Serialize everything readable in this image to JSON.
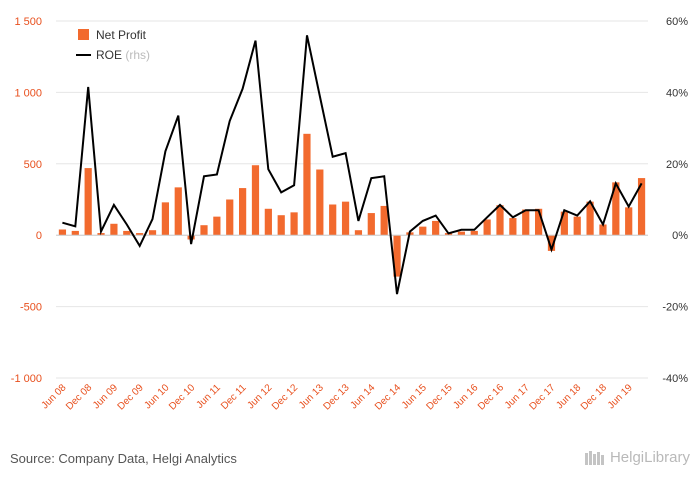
{
  "legend": {
    "net_profit": "Net Profit",
    "roe": "ROE",
    "roe_suffix": "(rhs)"
  },
  "source": "Source: Company Data, Helgi Analytics",
  "logo_text": "HelgiLibrary",
  "colors": {
    "bar": "#f26a2e",
    "line": "#000000",
    "left_axis_text": "#e8501e",
    "grid": "#e6e6e6"
  },
  "chart_data": {
    "type": "bar",
    "left_axis": {
      "ylim": [
        -1000,
        1500
      ],
      "ticks": [
        -1000,
        -500,
        0,
        500,
        1000,
        1500
      ],
      "tick_labels": [
        "-1 000",
        "-500",
        "0",
        "500",
        "1 000",
        "1 500"
      ]
    },
    "right_axis": {
      "ylim": [
        -40,
        60
      ],
      "ticks": [
        -40,
        -20,
        0,
        20,
        40,
        60
      ],
      "tick_labels": [
        "-40%",
        "-20%",
        "0%",
        "20%",
        "40%",
        "60%"
      ]
    },
    "x_tick_labels": [
      "Jun 08",
      "Dec 08",
      "Jun 09",
      "Dec 09",
      "Jun 10",
      "Dec 10",
      "Jun 11",
      "Dec 11",
      "Jun 12",
      "Dec 12",
      "Jun 13",
      "Dec 13",
      "Jun 14",
      "Dec 14",
      "Jun 15",
      "Dec 15",
      "Jun 16",
      "Dec 16",
      "Jun 17",
      "Dec 17",
      "Jun 18",
      "Dec 18",
      "Jun 19"
    ],
    "periods": [
      "Q2 08",
      "Q3 08",
      "Q4 08",
      "Q1 09",
      "Q2 09",
      "Q3 09",
      "Q4 09",
      "Q1 10",
      "Q2 10",
      "Q3 10",
      "Q4 10",
      "Q1 11",
      "Q2 11",
      "Q3 11",
      "Q4 11",
      "Q1 12",
      "Q2 12",
      "Q3 12",
      "Q4 12",
      "Q1 13",
      "Q2 13",
      "Q3 13",
      "Q4 13",
      "Q1 14",
      "Q2 14",
      "Q3 14",
      "Q4 14",
      "Q1 15",
      "Q2 15",
      "Q3 15",
      "Q4 15",
      "Q1 16",
      "Q2 16",
      "Q3 16",
      "Q4 16",
      "Q1 17",
      "Q2 17",
      "Q3 17",
      "Q4 17",
      "Q1 18",
      "Q2 18",
      "Q3 18",
      "Q4 18",
      "Q1 19",
      "Q2 19",
      "Q3 19"
    ],
    "series": [
      {
        "name": "Net Profit",
        "axis": "left",
        "type": "bar",
        "values": [
          40,
          30,
          470,
          15,
          80,
          30,
          15,
          35,
          230,
          335,
          -30,
          70,
          130,
          250,
          330,
          490,
          185,
          140,
          160,
          710,
          460,
          215,
          235,
          35,
          155,
          205,
          -290,
          20,
          60,
          100,
          15,
          25,
          30,
          110,
          210,
          120,
          180,
          185,
          -110,
          165,
          130,
          235,
          75,
          370,
          195,
          400
        ]
      },
      {
        "name": "ROE",
        "axis": "right",
        "type": "line",
        "values": [
          3.5,
          2.5,
          41.5,
          1,
          8.5,
          3,
          -3,
          4.5,
          23.5,
          33.5,
          -2.5,
          16.5,
          17,
          32,
          41,
          54.5,
          18.5,
          12,
          14,
          56,
          39,
          22,
          23,
          4,
          16,
          16.5,
          -16.5,
          1,
          4,
          5.5,
          0.5,
          1.5,
          1.5,
          5,
          8.5,
          5,
          7,
          7,
          -4,
          7,
          5.5,
          9.5,
          3,
          14.5,
          8,
          14.5
        ]
      }
    ]
  }
}
